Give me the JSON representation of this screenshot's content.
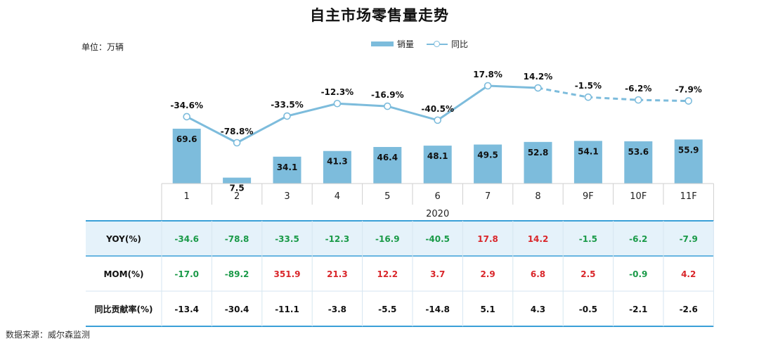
{
  "chart_data": {
    "type": "bar+line",
    "title": "自主市场零售量走势",
    "unit_label": "单位：万辆",
    "categories": [
      "1",
      "2",
      "3",
      "4",
      "5",
      "6",
      "7",
      "8",
      "9F",
      "10F",
      "11F"
    ],
    "group_label": "2020",
    "series": [
      {
        "name": "销量",
        "type": "bar",
        "values": [
          69.6,
          7.5,
          34.1,
          41.3,
          46.4,
          48.1,
          49.5,
          52.8,
          54.1,
          53.6,
          55.9
        ]
      },
      {
        "name": "同比",
        "type": "line",
        "unit": "%",
        "values": [
          -34.6,
          -78.8,
          -33.5,
          -12.3,
          -16.9,
          -40.5,
          17.8,
          14.2,
          -1.5,
          -6.2,
          -7.9
        ],
        "dashed_from_index": 7
      }
    ],
    "table": [
      {
        "label": "YOY(%)",
        "values": [
          "-34.6",
          "-78.8",
          "-33.5",
          "-12.3",
          "-16.9",
          "-40.5",
          "17.8",
          "14.2",
          "-1.5",
          "-6.2",
          "-7.9"
        ],
        "colored": true
      },
      {
        "label": "MOM(%)",
        "values": [
          "-17.0",
          "-89.2",
          "351.9",
          "21.3",
          "12.2",
          "3.7",
          "2.9",
          "6.8",
          "2.5",
          "-0.9",
          "4.2"
        ],
        "colored": true
      },
      {
        "label": "同比贡献率(%)",
        "values": [
          "-13.4",
          "-30.4",
          "-11.1",
          "-3.8",
          "-5.5",
          "-14.8",
          "5.1",
          "4.3",
          "-0.5",
          "-2.1",
          "-2.6"
        ],
        "colored": false
      }
    ],
    "source": "数据来源：威尔森监测"
  },
  "colors": {
    "bar": "#7dbcdc",
    "line": "#7dbcdc",
    "positive": "#d9262a",
    "negative": "#1a9a48",
    "neutral": "#111111",
    "header_bg": "#e5f2fa",
    "table_line": "#3aa0d8"
  }
}
